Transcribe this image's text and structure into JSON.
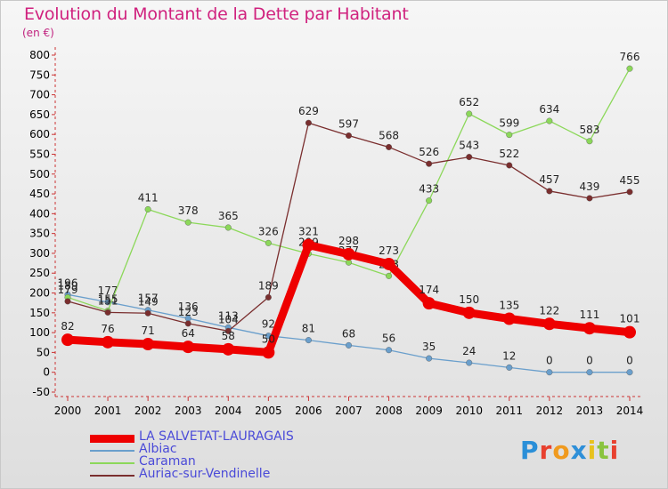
{
  "header": {
    "title": "Evolution du Montant de la Dette par Habitant",
    "unit": "(en €)"
  },
  "logo": {
    "letters": [
      "P",
      "r",
      "o",
      "x",
      "i",
      "t",
      "i"
    ],
    "colors": [
      "#2a8fd8",
      "#e8402e",
      "#f09a1e",
      "#2e8fd8",
      "#e8c21e",
      "#8ac43f",
      "#e8402e"
    ]
  },
  "chart_data": {
    "type": "line",
    "x": [
      2000,
      2001,
      2002,
      2003,
      2004,
      2005,
      2006,
      2007,
      2008,
      2009,
      2010,
      2011,
      2012,
      2013,
      2014
    ],
    "ylim": [
      -50,
      800
    ],
    "yticks": [
      -50,
      0,
      50,
      100,
      150,
      200,
      250,
      300,
      350,
      400,
      450,
      500,
      550,
      600,
      650,
      700,
      750,
      800
    ],
    "grid": false,
    "legend_position": "bottom-left",
    "series": [
      {
        "name": "Albiac",
        "color": "#6a9fcc",
        "values": [
          196,
          177,
          157,
          136,
          113,
          92,
          81,
          68,
          56,
          35,
          24,
          12,
          0,
          0,
          0
        ]
      },
      {
        "name": "Caraman",
        "color": "#8cd85a",
        "values": [
          189,
          155,
          411,
          378,
          365,
          326,
          299,
          277,
          243,
          433,
          652,
          599,
          634,
          583,
          766
        ]
      },
      {
        "name": "Auriac-sur-Vendinelle",
        "color": "#7a2e2e",
        "values": [
          179,
          151,
          149,
          123,
          104,
          189,
          629,
          597,
          568,
          526,
          543,
          522,
          457,
          439,
          455
        ]
      },
      {
        "name": "LA SALVETAT-LAURAGAIS",
        "color": "#ee0000",
        "values": [
          82,
          76,
          71,
          64,
          58,
          50,
          321,
          298,
          273,
          174,
          150,
          135,
          122,
          111,
          101
        ]
      }
    ],
    "legend_order": [
      "LA SALVETAT-LAURAGAIS",
      "Albiac",
      "Caraman",
      "Auriac-sur-Vendinelle"
    ]
  }
}
